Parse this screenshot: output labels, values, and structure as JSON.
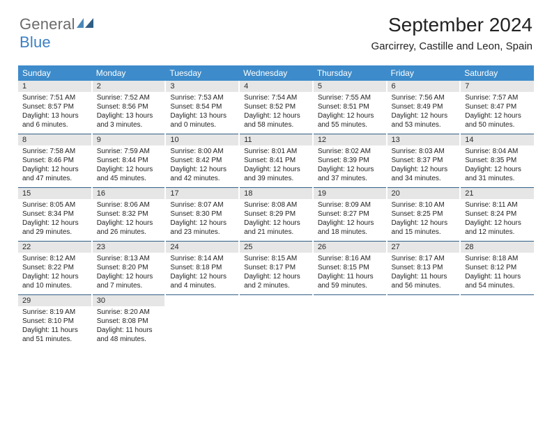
{
  "logo": {
    "general": "General",
    "blue": "Blue",
    "mark_colors": [
      "#4a87b9",
      "#2f5e86"
    ]
  },
  "title": "September 2024",
  "location": "Garcirrey, Castille and Leon, Spain",
  "colors": {
    "header_bg": "#3d8bca",
    "header_fg": "#ffffff",
    "daynum_bg": "#e6e6e6",
    "rule": "#2f5e86"
  },
  "dow": [
    "Sunday",
    "Monday",
    "Tuesday",
    "Wednesday",
    "Thursday",
    "Friday",
    "Saturday"
  ],
  "weeks": [
    [
      {
        "n": "1",
        "sr": "Sunrise: 7:51 AM",
        "ss": "Sunset: 8:57 PM",
        "d1": "Daylight: 13 hours",
        "d2": "and 6 minutes."
      },
      {
        "n": "2",
        "sr": "Sunrise: 7:52 AM",
        "ss": "Sunset: 8:56 PM",
        "d1": "Daylight: 13 hours",
        "d2": "and 3 minutes."
      },
      {
        "n": "3",
        "sr": "Sunrise: 7:53 AM",
        "ss": "Sunset: 8:54 PM",
        "d1": "Daylight: 13 hours",
        "d2": "and 0 minutes."
      },
      {
        "n": "4",
        "sr": "Sunrise: 7:54 AM",
        "ss": "Sunset: 8:52 PM",
        "d1": "Daylight: 12 hours",
        "d2": "and 58 minutes."
      },
      {
        "n": "5",
        "sr": "Sunrise: 7:55 AM",
        "ss": "Sunset: 8:51 PM",
        "d1": "Daylight: 12 hours",
        "d2": "and 55 minutes."
      },
      {
        "n": "6",
        "sr": "Sunrise: 7:56 AM",
        "ss": "Sunset: 8:49 PM",
        "d1": "Daylight: 12 hours",
        "d2": "and 53 minutes."
      },
      {
        "n": "7",
        "sr": "Sunrise: 7:57 AM",
        "ss": "Sunset: 8:47 PM",
        "d1": "Daylight: 12 hours",
        "d2": "and 50 minutes."
      }
    ],
    [
      {
        "n": "8",
        "sr": "Sunrise: 7:58 AM",
        "ss": "Sunset: 8:46 PM",
        "d1": "Daylight: 12 hours",
        "d2": "and 47 minutes."
      },
      {
        "n": "9",
        "sr": "Sunrise: 7:59 AM",
        "ss": "Sunset: 8:44 PM",
        "d1": "Daylight: 12 hours",
        "d2": "and 45 minutes."
      },
      {
        "n": "10",
        "sr": "Sunrise: 8:00 AM",
        "ss": "Sunset: 8:42 PM",
        "d1": "Daylight: 12 hours",
        "d2": "and 42 minutes."
      },
      {
        "n": "11",
        "sr": "Sunrise: 8:01 AM",
        "ss": "Sunset: 8:41 PM",
        "d1": "Daylight: 12 hours",
        "d2": "and 39 minutes."
      },
      {
        "n": "12",
        "sr": "Sunrise: 8:02 AM",
        "ss": "Sunset: 8:39 PM",
        "d1": "Daylight: 12 hours",
        "d2": "and 37 minutes."
      },
      {
        "n": "13",
        "sr": "Sunrise: 8:03 AM",
        "ss": "Sunset: 8:37 PM",
        "d1": "Daylight: 12 hours",
        "d2": "and 34 minutes."
      },
      {
        "n": "14",
        "sr": "Sunrise: 8:04 AM",
        "ss": "Sunset: 8:35 PM",
        "d1": "Daylight: 12 hours",
        "d2": "and 31 minutes."
      }
    ],
    [
      {
        "n": "15",
        "sr": "Sunrise: 8:05 AM",
        "ss": "Sunset: 8:34 PM",
        "d1": "Daylight: 12 hours",
        "d2": "and 29 minutes."
      },
      {
        "n": "16",
        "sr": "Sunrise: 8:06 AM",
        "ss": "Sunset: 8:32 PM",
        "d1": "Daylight: 12 hours",
        "d2": "and 26 minutes."
      },
      {
        "n": "17",
        "sr": "Sunrise: 8:07 AM",
        "ss": "Sunset: 8:30 PM",
        "d1": "Daylight: 12 hours",
        "d2": "and 23 minutes."
      },
      {
        "n": "18",
        "sr": "Sunrise: 8:08 AM",
        "ss": "Sunset: 8:29 PM",
        "d1": "Daylight: 12 hours",
        "d2": "and 21 minutes."
      },
      {
        "n": "19",
        "sr": "Sunrise: 8:09 AM",
        "ss": "Sunset: 8:27 PM",
        "d1": "Daylight: 12 hours",
        "d2": "and 18 minutes."
      },
      {
        "n": "20",
        "sr": "Sunrise: 8:10 AM",
        "ss": "Sunset: 8:25 PM",
        "d1": "Daylight: 12 hours",
        "d2": "and 15 minutes."
      },
      {
        "n": "21",
        "sr": "Sunrise: 8:11 AM",
        "ss": "Sunset: 8:24 PM",
        "d1": "Daylight: 12 hours",
        "d2": "and 12 minutes."
      }
    ],
    [
      {
        "n": "22",
        "sr": "Sunrise: 8:12 AM",
        "ss": "Sunset: 8:22 PM",
        "d1": "Daylight: 12 hours",
        "d2": "and 10 minutes."
      },
      {
        "n": "23",
        "sr": "Sunrise: 8:13 AM",
        "ss": "Sunset: 8:20 PM",
        "d1": "Daylight: 12 hours",
        "d2": "and 7 minutes."
      },
      {
        "n": "24",
        "sr": "Sunrise: 8:14 AM",
        "ss": "Sunset: 8:18 PM",
        "d1": "Daylight: 12 hours",
        "d2": "and 4 minutes."
      },
      {
        "n": "25",
        "sr": "Sunrise: 8:15 AM",
        "ss": "Sunset: 8:17 PM",
        "d1": "Daylight: 12 hours",
        "d2": "and 2 minutes."
      },
      {
        "n": "26",
        "sr": "Sunrise: 8:16 AM",
        "ss": "Sunset: 8:15 PM",
        "d1": "Daylight: 11 hours",
        "d2": "and 59 minutes."
      },
      {
        "n": "27",
        "sr": "Sunrise: 8:17 AM",
        "ss": "Sunset: 8:13 PM",
        "d1": "Daylight: 11 hours",
        "d2": "and 56 minutes."
      },
      {
        "n": "28",
        "sr": "Sunrise: 8:18 AM",
        "ss": "Sunset: 8:12 PM",
        "d1": "Daylight: 11 hours",
        "d2": "and 54 minutes."
      }
    ],
    [
      {
        "n": "29",
        "sr": "Sunrise: 8:19 AM",
        "ss": "Sunset: 8:10 PM",
        "d1": "Daylight: 11 hours",
        "d2": "and 51 minutes."
      },
      {
        "n": "30",
        "sr": "Sunrise: 8:20 AM",
        "ss": "Sunset: 8:08 PM",
        "d1": "Daylight: 11 hours",
        "d2": "and 48 minutes."
      },
      null,
      null,
      null,
      null,
      null
    ]
  ]
}
